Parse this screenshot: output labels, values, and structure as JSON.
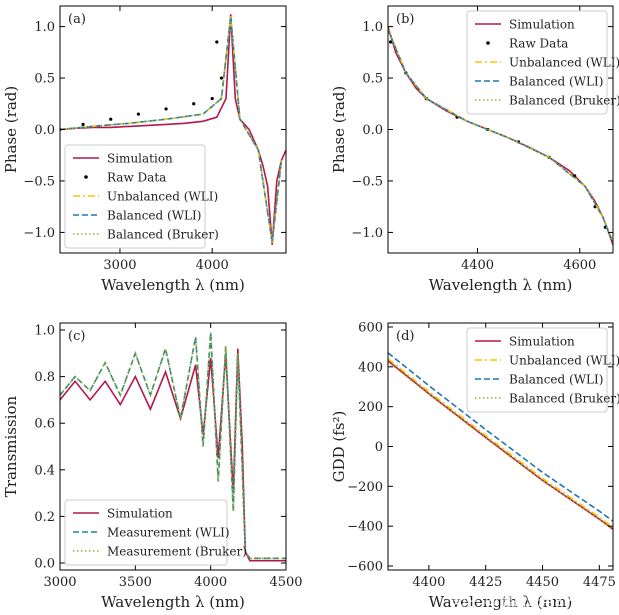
{
  "colors": {
    "simulation": "#b5174b",
    "raw": "#000000",
    "unbalanced_wli": "#ffc000",
    "balanced_wli": "#1f77b4",
    "balanced_bruker": "#8fb339",
    "measurement_wli": "#1b8a8a",
    "measurement_bruker": "#9aab2a"
  },
  "watermark": "知乎 @谱镭光电SPL",
  "chart_data": [
    {
      "id": "a",
      "panel_label": "(a)",
      "type": "line",
      "xlabel": "Wavelength λ (nm)",
      "ylabel": "Phase (rad)",
      "xlim": [
        2350,
        4800
      ],
      "ylim": [
        -1.2,
        1.2
      ],
      "xticks": [
        3000,
        4000
      ],
      "yticks": [
        -1.0,
        -0.5,
        0.0,
        0.5,
        1.0
      ],
      "xtick_labels": [
        "3000",
        "4000"
      ],
      "ytick_labels": [
        "−1.0",
        "−0.5",
        "0.0",
        "0.5",
        "1.0"
      ],
      "legend_position": "lower-left",
      "legend": [
        "Simulation",
        "Raw Data",
        "Unbalanced (WLI)",
        "Balanced (WLI)",
        "Balanced (Bruker)"
      ],
      "series": [
        {
          "name": "Simulation",
          "style": "solid",
          "color_key": "simulation",
          "x": [
            2350,
            2500,
            2700,
            2900,
            3100,
            3300,
            3500,
            3700,
            3900,
            4050,
            4150,
            4200,
            4250,
            4300,
            4400,
            4500,
            4550,
            4600,
            4650,
            4700,
            4750,
            4800
          ],
          "y": [
            0.0,
            0.01,
            0.02,
            0.02,
            0.03,
            0.04,
            0.05,
            0.06,
            0.08,
            0.12,
            0.3,
            1.12,
            0.3,
            0.1,
            0.0,
            -0.2,
            -0.35,
            -0.55,
            -1.12,
            -0.5,
            -0.3,
            -0.2
          ]
        },
        {
          "name": "Raw Data",
          "style": "dots",
          "color_key": "raw",
          "x": [
            2350,
            2600,
            2900,
            3200,
            3500,
            3800,
            4000,
            4050,
            4100
          ],
          "y": [
            0.0,
            0.05,
            0.1,
            0.15,
            0.2,
            0.25,
            0.3,
            0.85,
            0.5
          ]
        },
        {
          "name": "Unbalanced (WLI)",
          "style": "dashdot",
          "color_key": "unbalanced_wli",
          "x": [
            2350,
            2700,
            3100,
            3500,
            3900,
            4100,
            4200,
            4300,
            4500,
            4650,
            4750
          ],
          "y": [
            0.0,
            0.03,
            0.06,
            0.1,
            0.15,
            0.3,
            1.1,
            0.1,
            -0.2,
            -1.1,
            -0.3
          ]
        },
        {
          "name": "Balanced (WLI)",
          "style": "dashed",
          "color_key": "balanced_wli",
          "x": [
            2350,
            2700,
            3100,
            3500,
            3900,
            4100,
            4200,
            4300,
            4500,
            4650,
            4750
          ],
          "y": [
            0.0,
            0.03,
            0.06,
            0.1,
            0.15,
            0.3,
            1.1,
            0.1,
            -0.2,
            -1.1,
            -0.3
          ]
        },
        {
          "name": "Balanced (Bruker)",
          "style": "dotted",
          "color_key": "balanced_bruker",
          "x": [
            2350,
            2700,
            3100,
            3500,
            3900,
            4100,
            4200,
            4300,
            4500,
            4650,
            4750
          ],
          "y": [
            0.0,
            0.03,
            0.06,
            0.1,
            0.15,
            0.3,
            1.1,
            0.1,
            -0.2,
            -1.1,
            -0.3
          ]
        }
      ]
    },
    {
      "id": "b",
      "panel_label": "(b)",
      "type": "line",
      "xlabel": "Wavelength λ (nm)",
      "ylabel": "Phase (rad)",
      "xlim": [
        4225,
        4665
      ],
      "ylim": [
        -1.2,
        1.2
      ],
      "xticks": [
        4400,
        4600
      ],
      "yticks": [
        -1.0,
        -0.5,
        0.0,
        0.5,
        1.0
      ],
      "xtick_labels": [
        "4400",
        "4600"
      ],
      "ytick_labels": [
        "−1.0",
        "−0.5",
        "0.0",
        "0.5",
        "1.0"
      ],
      "legend_position": "upper-right",
      "legend": [
        "Simulation",
        "Raw Data",
        "Unbalanced (WLI)",
        "Balanced (WLI)",
        "Balanced (Bruker)"
      ],
      "series": [
        {
          "name": "Simulation",
          "style": "solid",
          "color_key": "simulation",
          "x": [
            4225,
            4240,
            4260,
            4280,
            4300,
            4340,
            4380,
            4420,
            4460,
            4500,
            4540,
            4580,
            4610,
            4630,
            4645,
            4655,
            4665
          ],
          "y": [
            1.0,
            0.75,
            0.55,
            0.4,
            0.3,
            0.18,
            0.08,
            0.0,
            -0.08,
            -0.17,
            -0.27,
            -0.4,
            -0.55,
            -0.7,
            -0.85,
            -0.98,
            -1.12
          ]
        },
        {
          "name": "Raw Data",
          "style": "dots",
          "color_key": "raw",
          "x": [
            4230,
            4260,
            4300,
            4360,
            4420,
            4480,
            4540,
            4590,
            4630,
            4650
          ],
          "y": [
            0.85,
            0.55,
            0.3,
            0.12,
            0.0,
            -0.12,
            -0.27,
            -0.45,
            -0.75,
            -0.95
          ]
        },
        {
          "name": "Unbalanced (WLI)",
          "style": "dashdot",
          "color_key": "unbalanced_wli",
          "x": [
            4225,
            4260,
            4300,
            4380,
            4460,
            4540,
            4610,
            4645,
            4665
          ],
          "y": [
            0.98,
            0.55,
            0.3,
            0.08,
            -0.08,
            -0.27,
            -0.55,
            -0.85,
            -1.1
          ]
        },
        {
          "name": "Balanced (WLI)",
          "style": "dashed",
          "color_key": "balanced_wli",
          "x": [
            4225,
            4260,
            4300,
            4380,
            4460,
            4540,
            4610,
            4645,
            4665
          ],
          "y": [
            0.97,
            0.55,
            0.3,
            0.08,
            -0.08,
            -0.27,
            -0.55,
            -0.85,
            -1.1
          ]
        },
        {
          "name": "Balanced (Bruker)",
          "style": "dotted",
          "color_key": "balanced_bruker",
          "x": [
            4225,
            4260,
            4300,
            4380,
            4460,
            4540,
            4610,
            4645,
            4665
          ],
          "y": [
            0.97,
            0.55,
            0.3,
            0.08,
            -0.08,
            -0.27,
            -0.55,
            -0.85,
            -1.1
          ]
        }
      ]
    },
    {
      "id": "c",
      "panel_label": "(c)",
      "type": "line",
      "xlabel": "Wavelength λ (nm)",
      "ylabel": "Transmission",
      "xlim": [
        3000,
        4500
      ],
      "ylim": [
        -0.03,
        1.03
      ],
      "xticks": [
        3000,
        3500,
        4000,
        4500
      ],
      "yticks": [
        0.0,
        0.2,
        0.4,
        0.6,
        0.8,
        1.0
      ],
      "xtick_labels": [
        "3000",
        "3500",
        "4000",
        "4500"
      ],
      "ytick_labels": [
        "0.0",
        "0.2",
        "0.4",
        "0.6",
        "0.8",
        "1.0"
      ],
      "legend_position": "lower-left",
      "legend": [
        "Simulation",
        "Measurement (WLI)",
        "Measurement (Bruker)"
      ],
      "series": [
        {
          "name": "Simulation",
          "style": "solid",
          "color_key": "simulation",
          "x": [
            3000,
            3100,
            3200,
            3300,
            3400,
            3500,
            3600,
            3700,
            3800,
            3900,
            3950,
            4000,
            4050,
            4100,
            4150,
            4180,
            4210,
            4230,
            4260,
            4300,
            4400,
            4500
          ],
          "y": [
            0.7,
            0.78,
            0.7,
            0.78,
            0.68,
            0.8,
            0.66,
            0.82,
            0.62,
            0.85,
            0.55,
            0.88,
            0.45,
            0.9,
            0.3,
            0.92,
            0.5,
            0.05,
            0.01,
            0.01,
            0.01,
            0.01
          ]
        },
        {
          "name": "Measurement (WLI)",
          "style": "dashed",
          "color_key": "measurement_wli",
          "x": [
            3000,
            3100,
            3200,
            3300,
            3400,
            3500,
            3600,
            3700,
            3800,
            3900,
            3950,
            4000,
            4050,
            4100,
            4150,
            4180,
            4210,
            4230,
            4260,
            4300,
            4400,
            4500
          ],
          "y": [
            0.72,
            0.8,
            0.74,
            0.86,
            0.72,
            0.9,
            0.72,
            0.92,
            0.62,
            0.97,
            0.5,
            0.99,
            0.35,
            0.93,
            0.22,
            0.9,
            0.4,
            0.05,
            0.02,
            0.02,
            0.02,
            0.02
          ]
        },
        {
          "name": "Measurement (Bruker)",
          "style": "dotted",
          "color_key": "measurement_bruker",
          "x": [
            3000,
            3100,
            3200,
            3300,
            3400,
            3500,
            3600,
            3700,
            3800,
            3900,
            3950,
            4000,
            4050,
            4100,
            4150,
            4180,
            4210,
            4230,
            4260,
            4300,
            4400,
            4500
          ],
          "y": [
            0.72,
            0.8,
            0.74,
            0.86,
            0.72,
            0.9,
            0.72,
            0.92,
            0.62,
            0.97,
            0.5,
            0.99,
            0.35,
            0.93,
            0.22,
            0.9,
            0.4,
            0.05,
            0.02,
            0.02,
            0.02,
            0.02
          ]
        }
      ]
    },
    {
      "id": "d",
      "panel_label": "(d)",
      "type": "line",
      "xlabel": "Wavelength λ (nm)",
      "ylabel": "GDD (fs²)",
      "xlim": [
        4382,
        4481
      ],
      "ylim": [
        -620,
        620
      ],
      "xticks": [
        4400,
        4425,
        4450,
        4475
      ],
      "yticks": [
        -600,
        -400,
        -200,
        0,
        200,
        400,
        600
      ],
      "xtick_labels": [
        "4400",
        "4425",
        "4450",
        "4475"
      ],
      "ytick_labels": [
        "−600",
        "−400",
        "−200",
        "0",
        "200",
        "400",
        "600"
      ],
      "legend_position": "upper-right",
      "legend": [
        "Simulation",
        "Unbalanced (WLI)",
        "Balanced (WLI)",
        "Balanced (Bruker)"
      ],
      "series": [
        {
          "name": "Simulation",
          "style": "solid",
          "color_key": "simulation",
          "x": [
            4382,
            4400,
            4425,
            4450,
            4475,
            4481
          ],
          "y": [
            430,
            265,
            45,
            -170,
            -365,
            -415
          ]
        },
        {
          "name": "Unbalanced (WLI)",
          "style": "dashdot",
          "color_key": "unbalanced_wli",
          "x": [
            4382,
            4400,
            4425,
            4450,
            4475,
            4481
          ],
          "y": [
            440,
            275,
            55,
            -160,
            -355,
            -405
          ]
        },
        {
          "name": "Balanced (WLI)",
          "style": "dashed",
          "color_key": "balanced_wli",
          "x": [
            4382,
            4400,
            4425,
            4450,
            4475,
            4481
          ],
          "y": [
            470,
            305,
            85,
            -130,
            -325,
            -375
          ]
        },
        {
          "name": "Balanced (Bruker)",
          "style": "dotted",
          "color_key": "balanced_bruker",
          "x": [
            4382,
            4400,
            4425,
            4450,
            4475,
            4481
          ],
          "y": [
            425,
            262,
            42,
            -172,
            -367,
            -417
          ]
        }
      ]
    }
  ]
}
